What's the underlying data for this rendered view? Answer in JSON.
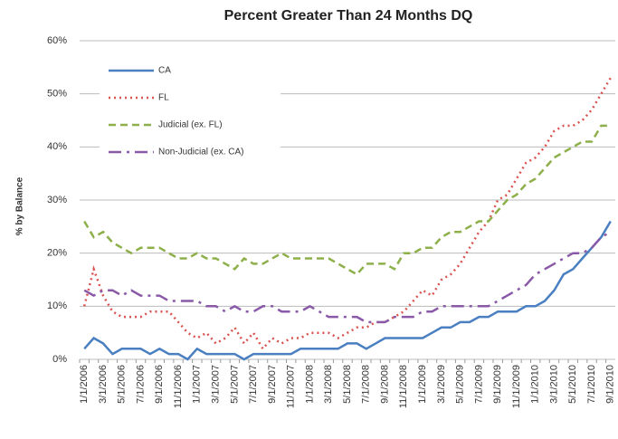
{
  "chart_data": {
    "type": "line",
    "title": "Percent Greater Than 24 Months DQ",
    "y_label": "% by Balance",
    "categories": [
      "1/1/2006",
      null,
      "3/1/2006",
      null,
      "5/1/2006",
      null,
      "7/1/2006",
      null,
      "9/1/2006",
      null,
      "11/1/2006",
      null,
      "1/1/2007",
      null,
      "3/1/2007",
      null,
      "5/1/2007",
      null,
      "7/1/2007",
      null,
      "9/1/2007",
      null,
      "11/1/2007",
      null,
      "1/1/2008",
      null,
      "3/1/2008",
      null,
      "5/1/2008",
      null,
      "7/1/2008",
      null,
      "9/1/2008",
      null,
      "11/1/2008",
      null,
      "1/1/2009",
      null,
      "3/1/2009",
      null,
      "5/1/2009",
      null,
      "7/1/2009",
      null,
      "9/1/2009",
      null,
      "11/1/2009",
      null,
      "1/1/2010",
      null,
      "3/1/2010",
      null,
      "5/1/2010",
      null,
      "7/1/2010",
      null,
      "9/1/2010"
    ],
    "series": [
      {
        "name": "CA",
        "color": "#4a7fc1",
        "values": [
          2,
          4,
          3,
          1,
          2,
          2,
          2,
          1,
          2,
          1,
          1,
          0,
          2,
          1,
          1,
          1,
          1,
          0,
          1,
          1,
          1,
          1,
          1,
          2,
          2,
          2,
          2,
          2,
          3,
          3,
          2,
          3,
          4,
          4,
          4,
          4,
          4,
          5,
          6,
          6,
          7,
          7,
          8,
          8,
          9,
          9,
          9,
          10,
          10,
          11,
          13,
          16,
          17,
          19,
          21,
          23,
          26
        ]
      },
      {
        "name": "FL",
        "color": "#d9534f",
        "values": [
          10,
          17,
          12,
          9,
          8,
          8,
          8,
          9,
          9,
          9,
          7,
          5,
          4,
          5,
          3,
          4,
          6,
          3,
          5,
          2,
          4,
          3,
          4,
          4,
          5,
          5,
          5,
          4,
          5,
          6,
          6,
          7,
          7,
          8,
          9,
          11,
          13,
          12,
          15,
          16,
          18,
          21,
          24,
          26,
          30,
          31,
          34,
          37,
          38,
          40,
          43,
          44,
          44,
          45,
          47,
          50,
          53
        ]
      },
      {
        "name": "Judicial (ex. FL)",
        "color": "#8db04a",
        "values": [
          26,
          23,
          24,
          22,
          21,
          20,
          21,
          21,
          21,
          20,
          19,
          19,
          20,
          19,
          19,
          18,
          17,
          19,
          18,
          18,
          19,
          20,
          19,
          19,
          19,
          19,
          19,
          18,
          17,
          16,
          18,
          18,
          18,
          17,
          20,
          20,
          21,
          21,
          23,
          24,
          24,
          25,
          26,
          26,
          28,
          30,
          31,
          33,
          34,
          36,
          38,
          39,
          40,
          41,
          41,
          44,
          44
        ]
      },
      {
        "name": "Non-Judicial (ex. CA)",
        "color": "#8a5aa8",
        "values": [
          13,
          12,
          13,
          13,
          12,
          13,
          12,
          12,
          12,
          11,
          11,
          11,
          11,
          10,
          10,
          9,
          10,
          9,
          9,
          10,
          10,
          9,
          9,
          9,
          10,
          9,
          8,
          8,
          8,
          8,
          7,
          7,
          7,
          8,
          8,
          8,
          9,
          9,
          10,
          10,
          10,
          10,
          10,
          10,
          11,
          12,
          13,
          14,
          16,
          17,
          18,
          19,
          20,
          20,
          21,
          23,
          24
        ]
      }
    ],
    "ylim": [
      0,
      60
    ],
    "yticks": [
      {
        "value": 0,
        "label": "0%"
      },
      {
        "value": 10,
        "label": "10%"
      },
      {
        "value": 20,
        "label": "20%"
      },
      {
        "value": 30,
        "label": "30%"
      },
      {
        "value": 40,
        "label": "40%"
      },
      {
        "value": 50,
        "label": "50%"
      },
      {
        "value": 60,
        "label": "60%"
      }
    ],
    "grid": true,
    "legend": "upper left"
  }
}
